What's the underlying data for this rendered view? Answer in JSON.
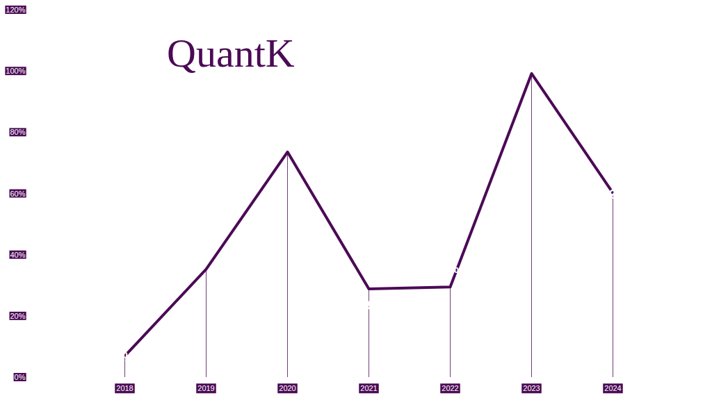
{
  "chart_data": {
    "type": "line",
    "title": "QuantK",
    "categories": [
      "2018",
      "2019",
      "2020",
      "2021",
      "2022",
      "2023",
      "2024"
    ],
    "values": [
      7,
      35.35,
      73.65,
      28.9,
      29.53,
      99.25,
      60.27
    ],
    "value_labels": [
      "7%",
      "35.35%",
      "73.65%",
      "28.90%",
      "29.53%",
      "99.25%",
      "60.27%"
    ],
    "color": "#4b0a55",
    "ylim": [
      0,
      120
    ],
    "yticks": [
      {
        "value": 0,
        "label": "0%"
      },
      {
        "value": 20,
        "label": "20%"
      },
      {
        "value": 40,
        "label": "40%"
      },
      {
        "value": 60,
        "label": "60%"
      },
      {
        "value": 80,
        "label": "80%"
      },
      {
        "value": 100,
        "label": "100%"
      },
      {
        "value": 120,
        "label": "120%"
      }
    ],
    "grid": false,
    "data_labels": true
  }
}
